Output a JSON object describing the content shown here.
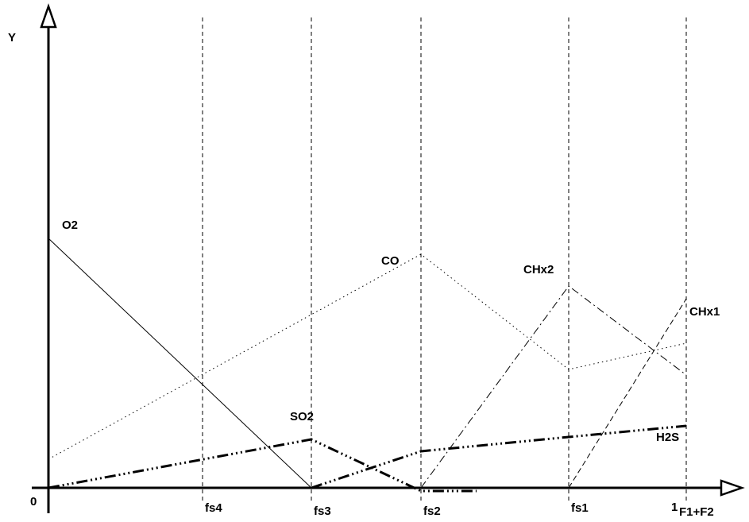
{
  "axes": {
    "y_label": "Y",
    "x_label": "F1+F2",
    "origin_label": "0"
  },
  "x_markers": [
    {
      "label": "fs4",
      "name": "fs4"
    },
    {
      "label": "fs3",
      "name": "fs3"
    },
    {
      "label": "fs2",
      "name": "fs2"
    },
    {
      "label": "fs1",
      "name": "fs1"
    },
    {
      "label": "1",
      "name": "one"
    }
  ],
  "curves": {
    "o2": {
      "label": "O2"
    },
    "co": {
      "label": "CO"
    },
    "so2": {
      "label": "SO2"
    },
    "chx2": {
      "label": "CHx2"
    },
    "chx1": {
      "label": "CHx1"
    },
    "h2s": {
      "label": "H2S"
    }
  }
}
